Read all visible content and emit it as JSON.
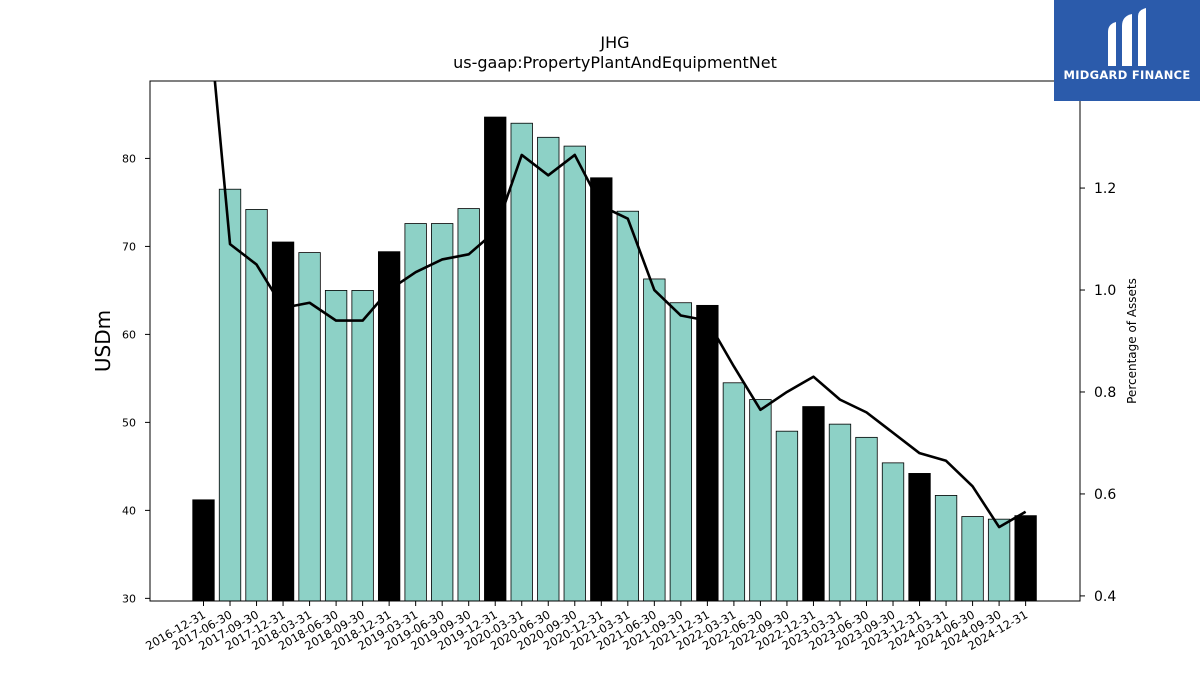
{
  "brand": {
    "name": "MIDGARD FINANCE",
    "bg_color": "#2b5bab",
    "icon": "midgard-logo-icon"
  },
  "chart_data": {
    "type": "bar",
    "title": "JHG",
    "subtitle": "us-gaap:PropertyPlantAndEquipmentNet",
    "ylabel": "USDm",
    "y2label": "Percentage of Assets",
    "ylim": [
      29.7,
      88.8
    ],
    "y2lim": [
      0.39,
      1.41
    ],
    "yticks": [
      30,
      40,
      50,
      60,
      70,
      80
    ],
    "y2ticks": [
      0.4,
      0.6,
      0.8,
      1.0,
      1.2
    ],
    "grid": false,
    "legend": "none",
    "colors": {
      "annual_bar": "#000000",
      "quarter_bar": "#8dd1c6",
      "line": "#000000"
    },
    "categories": [
      "2016-12-31",
      "2017-06-30",
      "2017-09-30",
      "2017-12-31",
      "2018-03-31",
      "2018-06-30",
      "2018-09-30",
      "2018-12-31",
      "2019-03-31",
      "2019-06-30",
      "2019-09-30",
      "2019-12-31",
      "2020-03-31",
      "2020-06-30",
      "2020-09-30",
      "2020-12-31",
      "2021-03-31",
      "2021-06-30",
      "2021-09-30",
      "2021-12-31",
      "2022-03-31",
      "2022-06-30",
      "2022-09-30",
      "2022-12-31",
      "2023-03-31",
      "2023-06-30",
      "2023-09-30",
      "2023-12-31",
      "2024-03-31",
      "2024-06-30",
      "2024-09-30",
      "2024-12-31"
    ],
    "series": [
      {
        "type": "bar",
        "axis": "left",
        "values": [
          41.2,
          76.5,
          74.2,
          70.5,
          69.3,
          65.0,
          65.0,
          69.4,
          72.6,
          72.6,
          74.3,
          84.7,
          84.0,
          82.4,
          81.4,
          77.8,
          74.0,
          66.3,
          63.6,
          63.3,
          54.5,
          52.6,
          49.0,
          51.8,
          49.8,
          48.3,
          45.4,
          44.2,
          41.7,
          39.3,
          39.0,
          39.4
        ],
        "annual_flags": [
          1,
          0,
          0,
          1,
          0,
          0,
          0,
          1,
          0,
          0,
          0,
          1,
          0,
          0,
          0,
          1,
          0,
          0,
          0,
          1,
          0,
          0,
          0,
          1,
          0,
          0,
          0,
          1,
          0,
          0,
          0,
          1
        ]
      },
      {
        "type": "line",
        "axis": "right",
        "values": [
          1.65,
          1.09,
          1.05,
          0.965,
          0.975,
          0.94,
          0.94,
          1.0,
          1.035,
          1.06,
          1.07,
          1.115,
          1.265,
          1.225,
          1.265,
          1.165,
          1.14,
          1.0,
          0.95,
          0.94,
          0.85,
          0.765,
          0.8,
          0.83,
          0.785,
          0.76,
          0.72,
          0.68,
          0.665,
          0.615,
          0.535,
          0.565
        ]
      }
    ]
  }
}
